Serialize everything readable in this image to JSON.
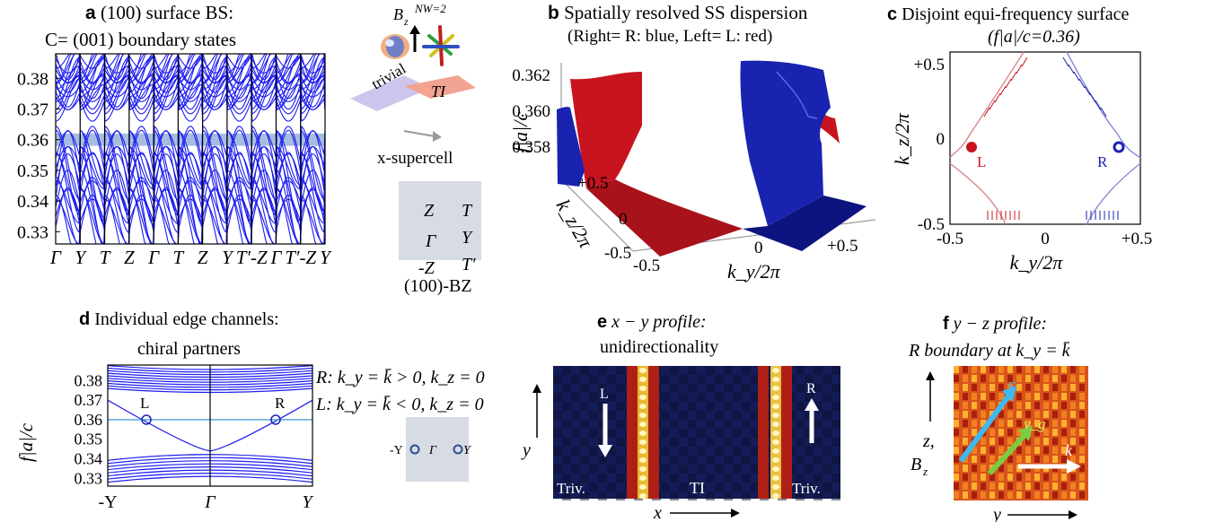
{
  "panel_a": {
    "letter": "a",
    "title_line1": "(100) surface BS:",
    "title_line2": "C= (001) boundary states",
    "yticks": [
      "0.38",
      "0.37",
      "0.36",
      "0.35",
      "0.34",
      "0.33"
    ],
    "xticks": [
      "Γ",
      "Y",
      "T",
      "Z",
      "Γ",
      "T",
      "Z",
      "Y",
      "T′-Z",
      "Γ",
      "T′-Z",
      "Y"
    ],
    "highlight_band": [
      0.358,
      0.362
    ],
    "inset": {
      "field_label": "B",
      "field_sub": "z",
      "field_sup": "NW=2",
      "trivial": "trivial",
      "ti": "TI",
      "supercell": "x-supercell",
      "bz_points": [
        "Z",
        "T",
        "Γ",
        "Y",
        "-Z",
        "T′"
      ],
      "bz_label": "(100)-BZ"
    }
  },
  "panel_b": {
    "letter": "b",
    "title_line1": "Spatially resolved SS dispersion",
    "title_line2": "(Right= R: blue, Left= L: red)",
    "zlabel": "f|a|/c",
    "zticks": [
      "0.362",
      "0.360",
      "0.358"
    ],
    "ky_label": "k_y/2π",
    "kz_label": "k_z/2π",
    "ky_ticks": [
      "-0.5",
      "0",
      "+0.5"
    ],
    "kz_ticks": [
      "+0.5",
      "0",
      "-0.5"
    ],
    "colors": {
      "right": "#1a22b0",
      "left": "#c8141e"
    }
  },
  "panel_c": {
    "letter": "c",
    "title_line1": "Disjoint equi-frequency surface",
    "title_line2": "(f|a|/c=0.36)",
    "ylabel": "k_z/2π",
    "xlabel": "k_y/2π",
    "xticks": [
      "-0.5",
      "0",
      "+0.5"
    ],
    "yticks": [
      "+0.5",
      "0",
      "-0.5"
    ],
    "L": "L",
    "R": "R"
  },
  "panel_d": {
    "letter": "d",
    "title_line1": "Individual edge channels:",
    "title_line2": "chiral partners",
    "ylabel": "f|a|/c",
    "yticks": [
      "0.38",
      "0.37",
      "0.36",
      "0.35",
      "0.34",
      "0.33"
    ],
    "xticks": [
      "-Y",
      "Γ",
      "Y"
    ],
    "L": "L",
    "R": "R",
    "cond_R": "R: k_y = k̄ > 0, k_z = 0",
    "cond_L": "L: k_y = k̄ < 0, k_z = 0",
    "inset_points": [
      "-Y",
      "Γ",
      "Y"
    ]
  },
  "panel_e": {
    "letter": "e",
    "title_line1": "x − y profile:",
    "title_line2": "unidirectionality",
    "L": "L",
    "R": "R",
    "triv_left": "Triv.",
    "ti": "TI",
    "triv_right": "Triv.",
    "x_axis": "x",
    "y_axis": "y"
  },
  "panel_f": {
    "letter": "f",
    "title_line1": "y − z profile:",
    "title_line2": "R boundary at k_y = k̄",
    "z_axis": "z,",
    "bz": "B",
    "bz_sub": "z",
    "s_vec": "S",
    "vg_vec": "v_g",
    "k_vec": "k",
    "y_axis": "y"
  }
}
